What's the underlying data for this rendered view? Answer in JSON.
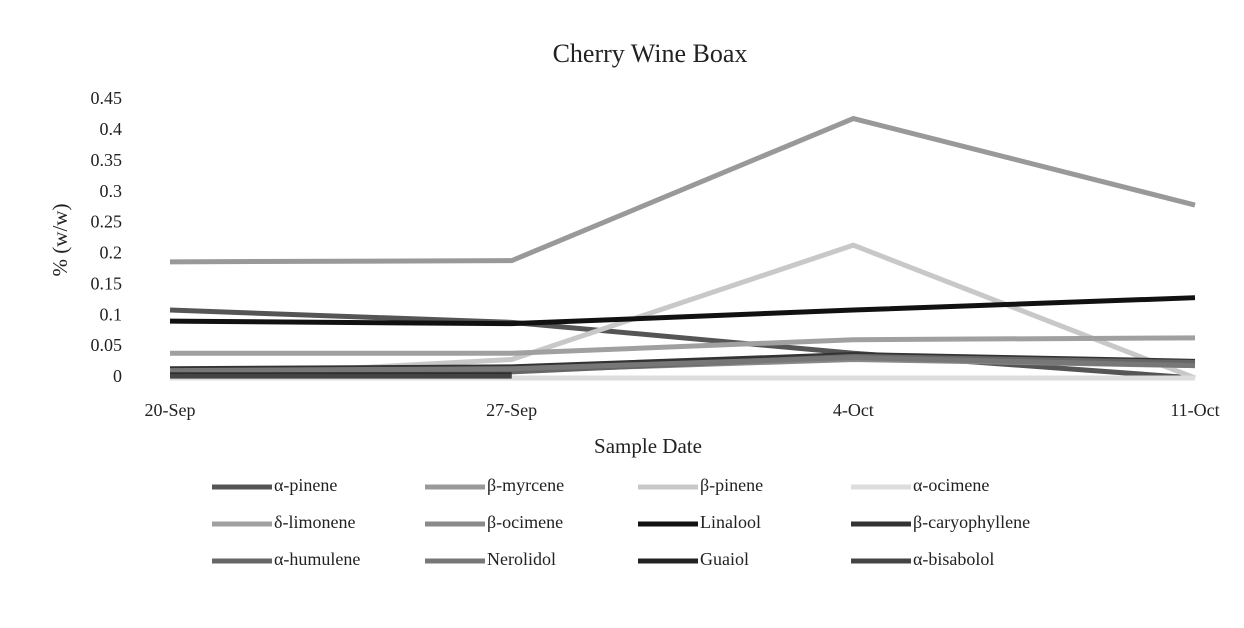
{
  "chart_data": {
    "type": "line",
    "title": "Cherry Wine Boax",
    "x_label": "Sample Date",
    "y_label": "% (w/w)",
    "categories": [
      "20-Sep",
      "27-Sep",
      "4-Oct",
      "11-Oct"
    ],
    "ylim": [
      0,
      0.45
    ],
    "yticks": [
      0,
      0.05,
      0.1,
      0.15,
      0.2,
      0.25,
      0.3,
      0.35,
      0.4,
      0.45
    ],
    "legend": "bottom",
    "series": [
      {
        "name": "α-pinene",
        "color": "#555555",
        "values": [
          0.11,
          0.09,
          0.04,
          0
        ]
      },
      {
        "name": "β-myrcene",
        "color": "#999999",
        "values": [
          0.188,
          0.19,
          0.42,
          0.28
        ]
      },
      {
        "name": "β-pinene",
        "color": "#c8c8c8",
        "values": [
          0,
          0.03,
          0.215,
          0
        ]
      },
      {
        "name": "α-ocimene",
        "color": "#dddddd",
        "values": [
          0,
          0,
          0,
          0
        ]
      },
      {
        "name": "δ-limonene",
        "color": "#a0a0a0",
        "values": [
          0.04,
          0.04,
          0.062,
          0.065
        ]
      },
      {
        "name": "β-ocimene",
        "color": "#8a8a8a",
        "values": [
          0.01,
          0.012,
          0.03,
          0.02
        ]
      },
      {
        "name": "Linalool",
        "color": "#111111",
        "values": [
          0.092,
          0.088,
          0.11,
          0.13
        ]
      },
      {
        "name": "β-caryophyllene",
        "color": "#333333",
        "values": [
          0.015,
          0.018,
          0.038,
          0.027
        ]
      },
      {
        "name": "α-humulene",
        "color": "#666666",
        "values": [
          0.008,
          0.01,
          0.035,
          0.025
        ]
      },
      {
        "name": "Nerolidol",
        "color": "#777777",
        "values": [
          0.012,
          0.015,
          0.033,
          0.02
        ]
      },
      {
        "name": "Guaiol",
        "color": "#222222",
        "values": [
          0.005,
          0.005,
          null,
          null
        ]
      },
      {
        "name": "α-bisabolol",
        "color": "#444444",
        "values": [
          0.003,
          0.003,
          null,
          null
        ]
      }
    ]
  }
}
